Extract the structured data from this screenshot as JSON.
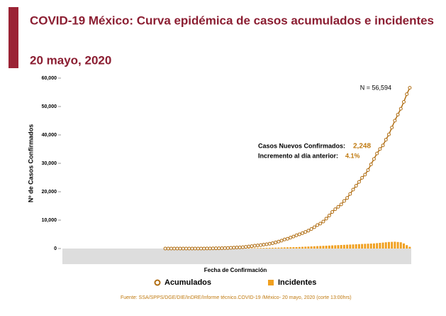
{
  "chart_data": {
    "type": "line",
    "title": "COVID-19 México: Curva epidémica de casos acumulados e incidentes",
    "subtitle": "20 mayo, 2020",
    "ylabel": "Nº de Casos Confirmados",
    "xlabel": "Fecha de Confirmación",
    "source": "Fuente: SSA/SPPS/DGE/DIE/InDRE/Informe técnico.COVID-19 /México- 20 mayo, 2020 (corte 13:00hrs)",
    "annotations": [
      "N = 56,594",
      "Casos Nuevos Confirmados:",
      "2,248",
      "Incremento al día anterior:",
      "4.1%"
    ],
    "categories": [
      null,
      null,
      null,
      null,
      null,
      null,
      null,
      null,
      null,
      null,
      null,
      null,
      null,
      null,
      null,
      null,
      null,
      null,
      null,
      null,
      null,
      null,
      null,
      null,
      null,
      null,
      null,
      null,
      null,
      null,
      null,
      null,
      null,
      null,
      null,
      null,
      null,
      null,
      null,
      null,
      null,
      null,
      null,
      null,
      null,
      null,
      null,
      null,
      null,
      null,
      null,
      null,
      null,
      null,
      null,
      null,
      null,
      null,
      null,
      null,
      null,
      null,
      null,
      null,
      null,
      null,
      null,
      null,
      null,
      null,
      null,
      null,
      null,
      null,
      null,
      null,
      null,
      null,
      null,
      null,
      null,
      null,
      null,
      null,
      null,
      null,
      null,
      null,
      null,
      null,
      null,
      null,
      null,
      null,
      null,
      null,
      null,
      null,
      null,
      null,
      null,
      null,
      null,
      null,
      null,
      null,
      null,
      null,
      null,
      null,
      null,
      null,
      null,
      null,
      null,
      null,
      null
    ],
    "series": [
      {
        "name": "Acumulados",
        "type": "line",
        "color": "#b06d12",
        "values": [
          null,
          null,
          null,
          null,
          null,
          null,
          null,
          null,
          null,
          null,
          null,
          null,
          null,
          null,
          null,
          null,
          null,
          null,
          null,
          null,
          null,
          null,
          null,
          null,
          null,
          null,
          null,
          null,
          null,
          null,
          null,
          null,
          null,
          null,
          1,
          4,
          5,
          5,
          5,
          5,
          5,
          6,
          7,
          7,
          7,
          7,
          8,
          12,
          26,
          41,
          53,
          82,
          93,
          118,
          164,
          203,
          251,
          316,
          367,
          405,
          475,
          585,
          717,
          848,
          993,
          1094,
          1215,
          1378,
          1510,
          1688,
          1890,
          2143,
          2439,
          2785,
          3181,
          3441,
          3844,
          4219,
          4661,
          5014,
          5399,
          5847,
          6297,
          6875,
          7497,
          8261,
          8772,
          9501,
          10544,
          11633,
          12872,
          13842,
          14677,
          15529,
          16752,
          17799,
          19224,
          20739,
          22088,
          23471,
          24905,
          26025,
          27634,
          29616,
          31522,
          33460,
          35022,
          36327,
          38324,
          40186,
          42595,
          45032,
          47144,
          49219,
          51633,
          54346,
          56594
        ]
      },
      {
        "name": "Incidentes",
        "type": "bar",
        "color": "#f0a020",
        "values": [
          null,
          null,
          null,
          null,
          null,
          null,
          null,
          null,
          null,
          null,
          null,
          null,
          null,
          null,
          null,
          null,
          null,
          null,
          null,
          null,
          null,
          null,
          null,
          null,
          null,
          null,
          null,
          null,
          null,
          null,
          null,
          null,
          null,
          null,
          1,
          0,
          2,
          0,
          1,
          0,
          1,
          1,
          0,
          1,
          2,
          2,
          5,
          8,
          10,
          12,
          15,
          20,
          25,
          30,
          40,
          50,
          55,
          60,
          70,
          80,
          90,
          100,
          120,
          140,
          160,
          180,
          200,
          220,
          240,
          260,
          280,
          300,
          330,
          360,
          400,
          420,
          450,
          480,
          500,
          550,
          600,
          650,
          700,
          750,
          800,
          850,
          900,
          950,
          1000,
          1050,
          1100,
          1150,
          1200,
          1250,
          1300,
          1350,
          1400,
          1450,
          1500,
          1550,
          1600,
          1650,
          1700,
          1750,
          1800,
          1900,
          2000,
          2100,
          2200,
          2300,
          2350,
          2400,
          2300,
          2200,
          1800,
          1200,
          600
        ]
      }
    ],
    "ylim": [
      0,
      60000
    ],
    "yticks": [
      0,
      {
        "value": 10000,
        "label": "10,000"
      },
      {
        "value": 20000,
        "label": "20,000"
      },
      {
        "value": 30000,
        "label": "30,000"
      },
      {
        "value": 40000,
        "label": "40,000"
      },
      {
        "value": 50000,
        "label": "50,000"
      },
      {
        "value": 60000,
        "label": "60,000"
      }
    ]
  }
}
